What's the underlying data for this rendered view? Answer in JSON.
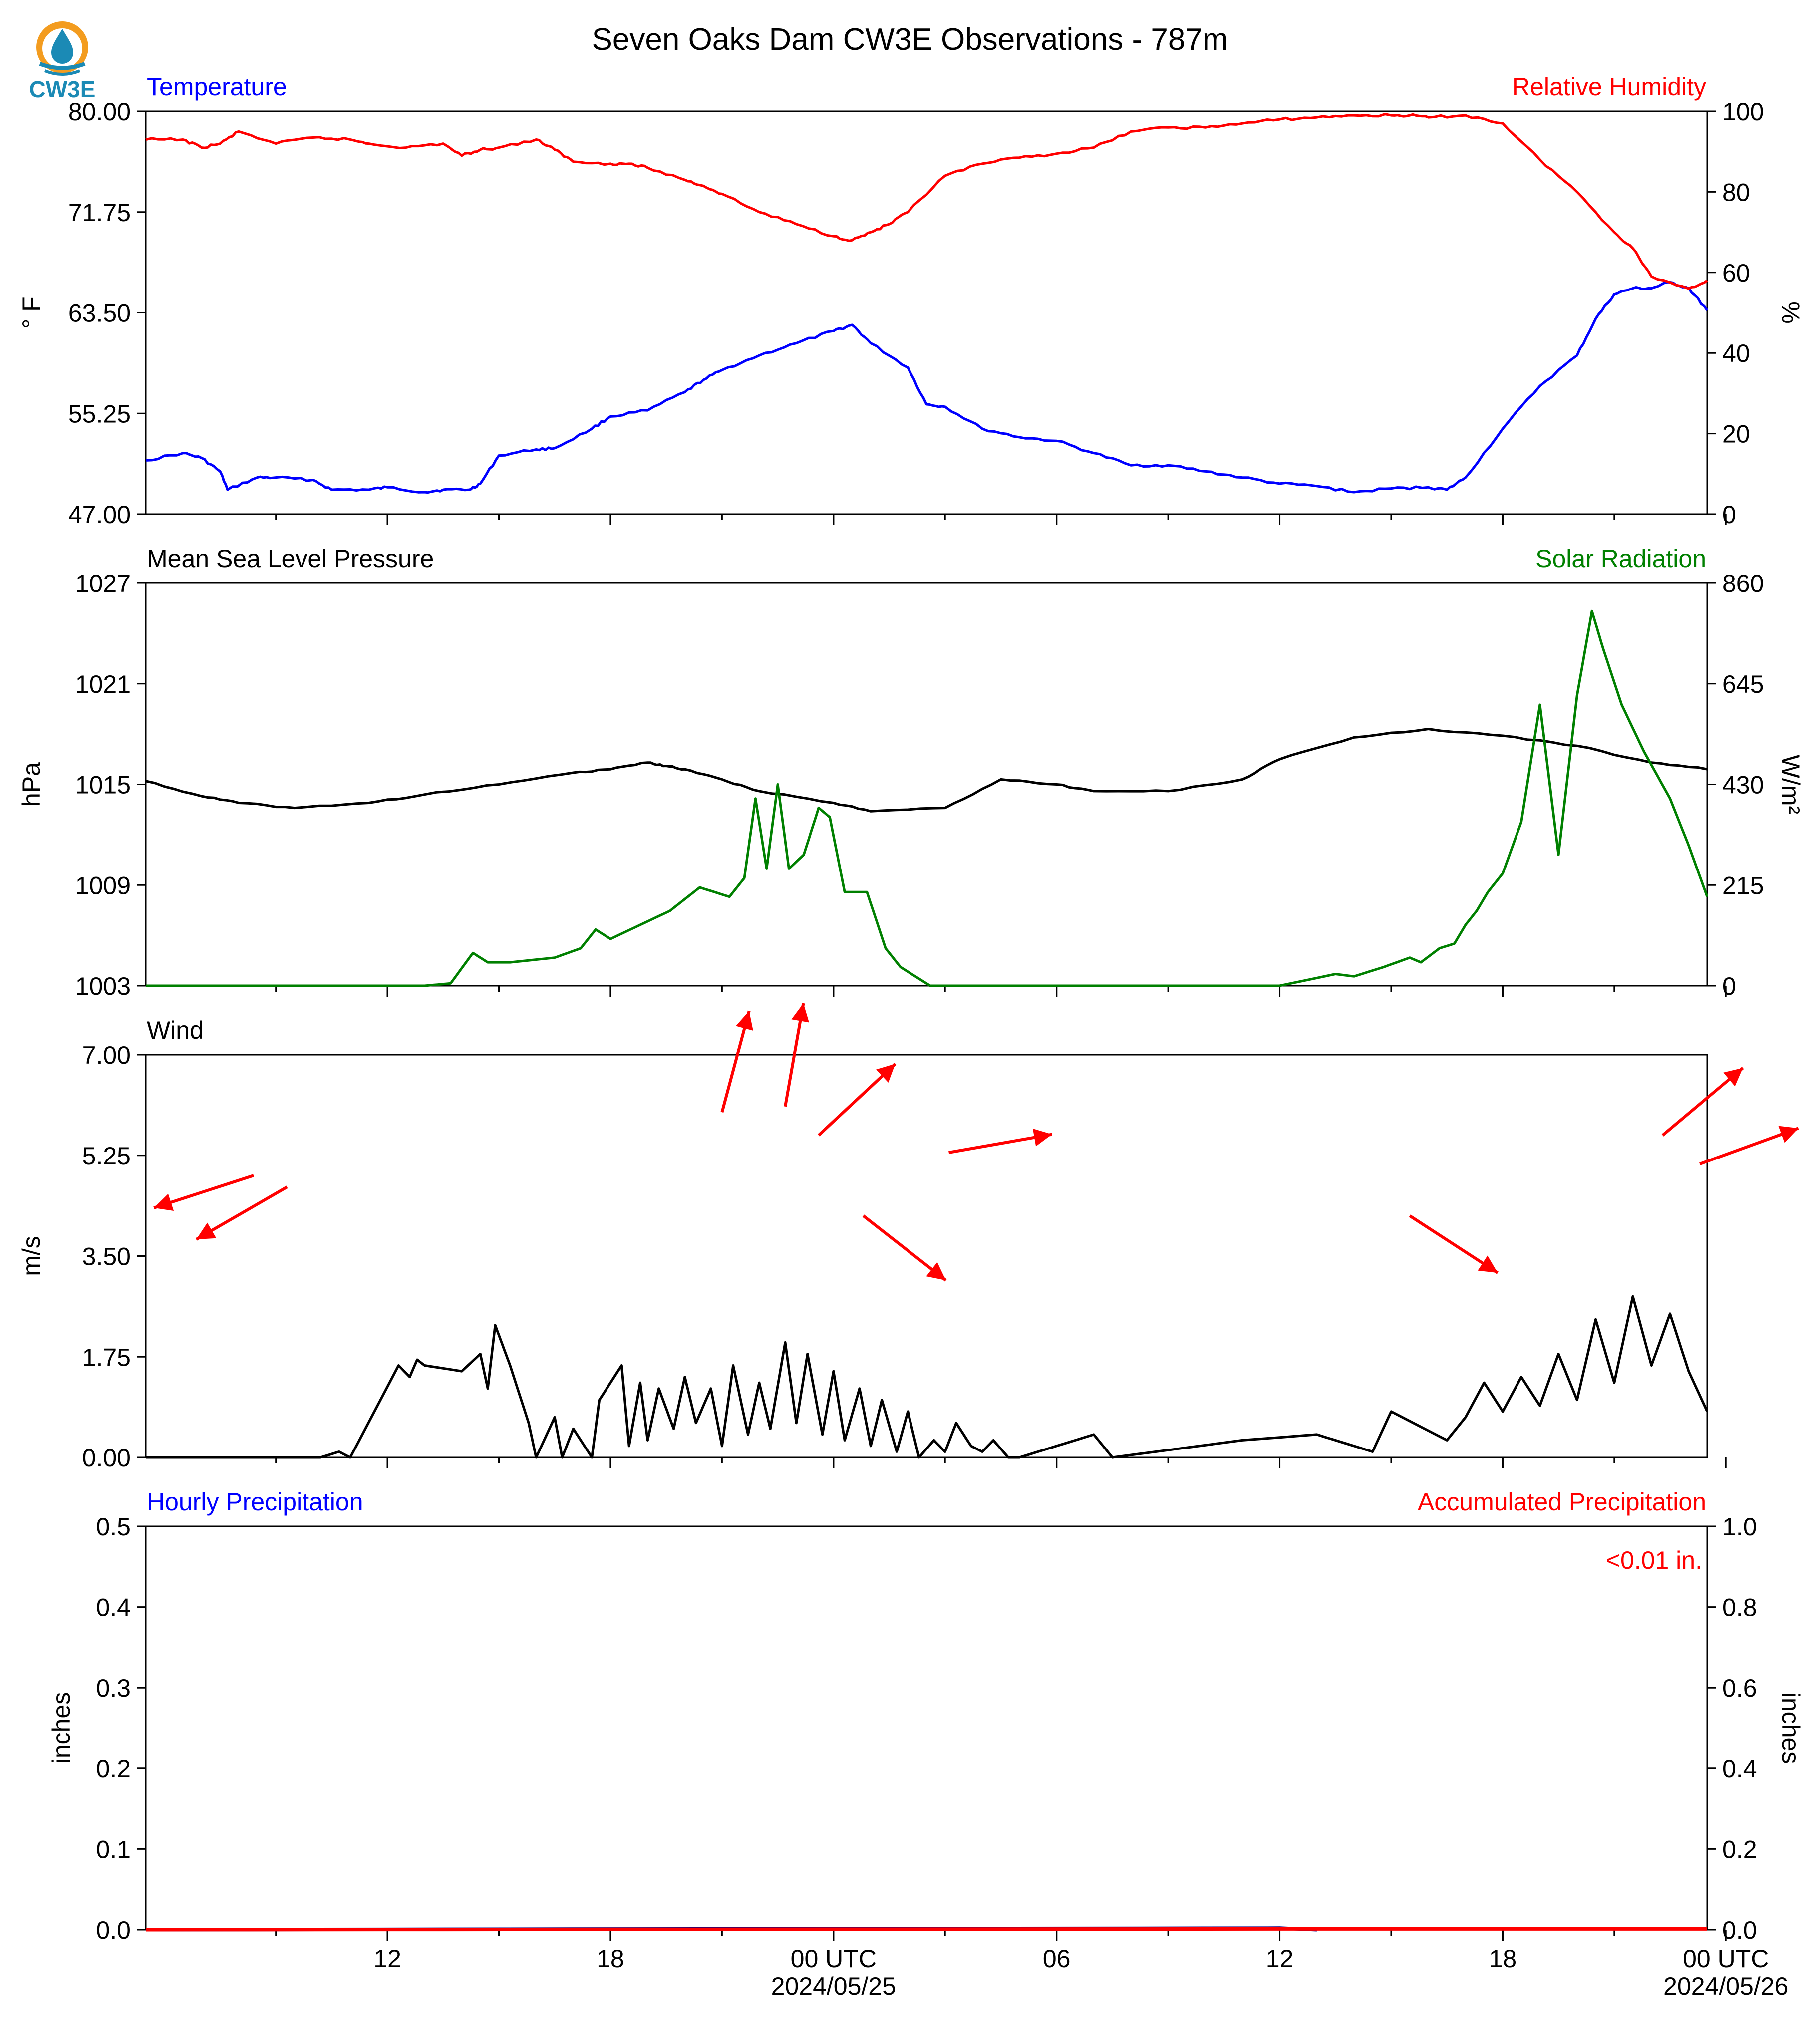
{
  "title": "Seven Oaks Dam CW3E Observations - 787m",
  "logo": {
    "text": "CW3E",
    "colors": {
      "orange": "#f39c1f",
      "blue": "#1b8ab5"
    }
  },
  "time_axis": {
    "range_hours": [
      -12.5,
      29.5
    ],
    "major_ticks": [
      {
        "h": -6,
        "label": "12",
        "date": ""
      },
      {
        "h": 0,
        "label": "18",
        "date": ""
      },
      {
        "h": 6,
        "label": "00 UTC",
        "date": "2024/05/25"
      },
      {
        "h": 12,
        "label": "06",
        "date": ""
      },
      {
        "h": 18,
        "label": "12",
        "date": ""
      },
      {
        "h": 24,
        "label": "18",
        "date": ""
      },
      {
        "h": 30,
        "label": "00 UTC",
        "date": "2024/05/26"
      }
    ]
  },
  "chart_data": [
    {
      "type": "line",
      "left_title": "Temperature",
      "right_title": "Relative Humidity",
      "ylabel_left": "° F",
      "ylabel_right": "%",
      "ylim_left": [
        47,
        80
      ],
      "ylim_right": [
        0,
        100
      ],
      "yticks_left": [
        "80.00",
        "71.75",
        "63.50",
        "55.25",
        "47.00"
      ],
      "yticks_right": [
        "100",
        "80",
        "60",
        "40",
        "20",
        "0"
      ],
      "series": [
        {
          "axis": "left",
          "color": "#0000ff",
          "x": [
            -12.5,
            -11.5,
            -11,
            -10.5,
            -10.3,
            -9.5,
            -9,
            -8,
            -7.5,
            -6.5,
            -6,
            -5,
            -4.5,
            -3.8,
            -3.5,
            -3,
            -2,
            -1.5,
            -0.5,
            0,
            1,
            2,
            2.5,
            3,
            4,
            5,
            6,
            6.5,
            7,
            8,
            8.5,
            9,
            10,
            11,
            12,
            13,
            14,
            15,
            16,
            17,
            18,
            19,
            20,
            21,
            22,
            22.5,
            23,
            24,
            25,
            26,
            26.5,
            27,
            27.5,
            28,
            28.5,
            29,
            29.5
          ],
          "y": [
            51.4,
            52,
            51.6,
            50.5,
            49,
            50,
            50,
            49.8,
            49,
            49,
            49.2,
            48.8,
            49,
            49,
            49.5,
            51.8,
            52.3,
            52.4,
            54,
            55,
            55.5,
            57,
            58,
            58.8,
            60,
            61,
            62,
            62.5,
            61,
            59,
            56,
            55.8,
            54,
            53.3,
            53,
            52,
            51,
            51,
            50.5,
            50,
            49.5,
            49.3,
            48.8,
            49.1,
            49.2,
            49,
            50,
            54,
            57.5,
            60,
            63,
            65,
            65.5,
            65.5,
            66,
            65.5,
            63.7
          ]
        },
        {
          "axis": "right",
          "color": "#ff0000",
          "x": [
            -12.5,
            -11.5,
            -11,
            -10.5,
            -10,
            -9,
            -8,
            -7,
            -6.5,
            -5.5,
            -4.5,
            -4,
            -3.5,
            -3,
            -2,
            -1.5,
            -1,
            0,
            0.5,
            1,
            2,
            2.5,
            3,
            4,
            5,
            6,
            6.5,
            7,
            7.5,
            8,
            9,
            10,
            11,
            12,
            13,
            14,
            15,
            16,
            17,
            18,
            19,
            20,
            21,
            21.5,
            22,
            23,
            24,
            25,
            26,
            27,
            27.5,
            28,
            29,
            29.5
          ],
          "y": [
            93,
            93,
            91,
            92,
            95,
            92,
            93.5,
            93,
            92,
            91,
            92,
            89,
            90.5,
            91,
            93,
            90.5,
            87.5,
            87,
            87,
            86,
            83,
            81.5,
            79.5,
            75,
            72,
            69,
            68,
            70,
            72,
            75,
            84,
            87,
            88.5,
            89.5,
            91,
            95,
            96,
            96,
            97,
            98,
            98.5,
            99,
            99,
            99,
            98.5,
            99,
            97,
            88,
            80,
            70,
            66,
            59,
            56,
            58
          ]
        }
      ]
    },
    {
      "type": "line",
      "left_title": "Mean Sea Level Pressure",
      "right_title": "Solar Radiation",
      "ylabel_left": "hPa",
      "ylabel_right": "W/m²",
      "ylim_left": [
        1003,
        1027
      ],
      "ylim_right": [
        0,
        860
      ],
      "yticks_left": [
        "1027",
        "1021",
        "1015",
        "1009",
        "1003"
      ],
      "yticks_right": [
        "860",
        "645",
        "430",
        "215",
        "0"
      ],
      "series": [
        {
          "axis": "left",
          "color": "#000000",
          "x": [
            -12.5,
            -11,
            -10,
            -8.5,
            -6.5,
            -5,
            -3,
            -1,
            0,
            1,
            1.5,
            2,
            3,
            4,
            6,
            7,
            9,
            10.5,
            12,
            13,
            15,
            17,
            18,
            20,
            22,
            24,
            26,
            28,
            29.5
          ],
          "y": [
            1015.2,
            1014.3,
            1013.9,
            1013.6,
            1013.9,
            1014.4,
            1015,
            1015.7,
            1015.9,
            1016.3,
            1016.1,
            1015.9,
            1015.3,
            1014.6,
            1013.9,
            1013.4,
            1013.6,
            1015.3,
            1015,
            1014.6,
            1014.6,
            1015.3,
            1016.5,
            1017.8,
            1018.3,
            1017.9,
            1017.3,
            1016.3,
            1015.9
          ]
        },
        {
          "axis": "right",
          "color": "#008000",
          "x": [
            -12.5,
            -7.5,
            -5,
            -4.3,
            -3.7,
            -3.3,
            -2.7,
            -1.5,
            -0.8,
            -0.4,
            0,
            0.8,
            1.6,
            2.4,
            3.2,
            3.6,
            3.9,
            4.2,
            4.5,
            4.8,
            5.2,
            5.6,
            5.9,
            6.3,
            6.9,
            7.4,
            7.8,
            8.6,
            10,
            16,
            17.5,
            18,
            19.5,
            20,
            20.8,
            21.5,
            21.8,
            22.3,
            22.7,
            23,
            23.3,
            23.6,
            24,
            24.5,
            25,
            25.5,
            26,
            26.4,
            26.7,
            27.2,
            27.8,
            28.5,
            29,
            29.5
          ],
          "y": [
            0,
            0,
            0,
            5,
            70,
            50,
            50,
            60,
            80,
            120,
            100,
            130,
            160,
            210,
            190,
            230,
            400,
            250,
            430,
            250,
            280,
            380,
            360,
            200,
            200,
            80,
            40,
            0,
            0,
            0,
            0,
            0,
            25,
            20,
            40,
            60,
            50,
            80,
            90,
            130,
            160,
            200,
            240,
            350,
            600,
            280,
            620,
            800,
            720,
            600,
            500,
            400,
            300,
            190
          ]
        }
      ]
    },
    {
      "type": "line",
      "left_title": "Wind",
      "ylabel_left": "m/s",
      "ylim_left": [
        0,
        7
      ],
      "yticks_left": [
        "7.00",
        "5.25",
        "3.50",
        "1.75",
        "0.00"
      ],
      "series": [
        {
          "axis": "left",
          "color": "#000000",
          "x": [
            -12.5,
            -7.8,
            -7.3,
            -7,
            -5.7,
            -5.4,
            -5.2,
            -5,
            -4,
            -3.5,
            -3.3,
            -3.1,
            -2.7,
            -2.2,
            -2.0,
            -1.5,
            -1.3,
            -1.0,
            -0.5,
            -0.3,
            0.3,
            0.5,
            0.8,
            1.0,
            1.3,
            1.7,
            2.0,
            2.3,
            2.7,
            3.0,
            3.3,
            3.7,
            4.0,
            4.3,
            4.7,
            5.0,
            5.3,
            5.7,
            6.0,
            6.3,
            6.7,
            7.0,
            7.3,
            7.7,
            8.0,
            8.3,
            8.7,
            9.0,
            9.3,
            9.7,
            10.0,
            10.3,
            10.7,
            11,
            13,
            13.5,
            17,
            19,
            20.5,
            21,
            22.5,
            23,
            23.5,
            24,
            24.5,
            25,
            25.5,
            26,
            26.5,
            27,
            27.5,
            28,
            28.5,
            29,
            29.5
          ],
          "y": [
            0,
            0,
            0.1,
            0,
            1.6,
            1.4,
            1.7,
            1.6,
            1.5,
            1.8,
            1.2,
            2.3,
            1.6,
            0.6,
            0,
            0.7,
            0,
            0.5,
            0,
            1,
            1.6,
            0.2,
            1.3,
            0.3,
            1.2,
            0.5,
            1.4,
            0.6,
            1.2,
            0.2,
            1.6,
            0.4,
            1.3,
            0.5,
            2.0,
            0.6,
            1.8,
            0.4,
            1.5,
            0.3,
            1.2,
            0.2,
            1.0,
            0.1,
            0.8,
            0,
            0.3,
            0.1,
            0.6,
            0.2,
            0.1,
            0.3,
            0,
            0,
            0.4,
            0,
            0.3,
            0.4,
            0.1,
            0.8,
            0.3,
            0.7,
            1.3,
            0.8,
            1.4,
            0.9,
            1.8,
            1.0,
            2.4,
            1.3,
            2.8,
            1.6,
            2.5,
            1.5,
            0.8
          ]
        },
        {
          "axis": "left",
          "color": "#ff0000",
          "kind": "arrows",
          "vectors": [
            {
              "x": -9.6,
              "y": 4.9,
              "angle": 198
            },
            {
              "x": -8.7,
              "y": 4.7,
              "angle": 210
            },
            {
              "x": 3.0,
              "y": 6.0,
              "angle": 75
            },
            {
              "x": 4.7,
              "y": 6.1,
              "angle": 80
            },
            {
              "x": 5.6,
              "y": 5.6,
              "angle": 43
            },
            {
              "x": 6.8,
              "y": 4.2,
              "angle": -38
            },
            {
              "x": 9.1,
              "y": 5.3,
              "angle": 10
            },
            {
              "x": 21.5,
              "y": 4.2,
              "angle": -33
            },
            {
              "x": 28.3,
              "y": 5.6,
              "angle": 40
            },
            {
              "x": 29.3,
              "y": 5.1,
              "angle": 20
            }
          ]
        }
      ]
    },
    {
      "type": "bar",
      "left_title": "Hourly Precipitation",
      "right_title": "Accumulated Precipitation",
      "ylabel_left": "inches",
      "ylabel_right": "inches",
      "ylim_left": [
        0,
        0.5
      ],
      "ylim_right": [
        0,
        1
      ],
      "yticks_left": [
        "0.5",
        "0.4",
        "0.3",
        "0.2",
        "0.1",
        "0.0"
      ],
      "yticks_right": [
        "1.0",
        "0.8",
        "0.6",
        "0.4",
        "0.2",
        "0.0"
      ],
      "annotation": "<0.01 in.",
      "series": [
        {
          "axis": "left",
          "name": "",
          "color": "#000080",
          "x": [
            -12.5,
            18,
            19
          ],
          "values": [
            0,
            0.002,
            0
          ]
        },
        {
          "axis": "right",
          "name": "",
          "color": "#ff0000",
          "x": [
            -12.5,
            18,
            29.5
          ],
          "values": [
            0,
            0.002,
            0.002
          ]
        }
      ]
    }
  ]
}
